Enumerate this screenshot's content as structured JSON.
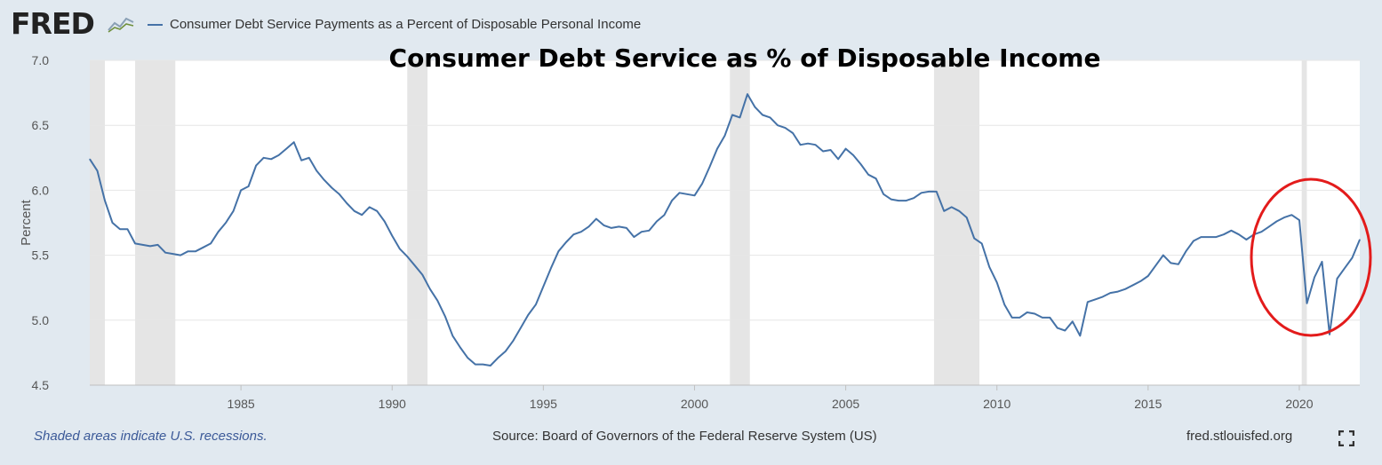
{
  "header": {
    "logo": "FRED",
    "legend_label": "Consumer Debt Service Payments as a Percent of Disposable Personal Income"
  },
  "footer": {
    "note": "Shaded areas indicate U.S. recessions.",
    "source": "Source: Board of Governors of the Federal Reserve System (US)",
    "url": "fred.stlouisfed.org"
  },
  "colors": {
    "line": "#4572a7",
    "recession": "#e5e5e5",
    "annotation": "#e31b1b",
    "background": "#e1e9f0"
  },
  "icons": {
    "logo_chart": "line-chart-icon",
    "fullscreen": "fullscreen-icon"
  },
  "chart_data": {
    "type": "line",
    "title": "Consumer Debt Service as % of Disposable Income",
    "xlabel": "",
    "ylabel": "Percent",
    "xlim": [
      1980.0,
      2022.0
    ],
    "ylim": [
      4.5,
      7.0
    ],
    "grid": true,
    "y_ticks": [
      "4.5",
      "5.0",
      "5.5",
      "6.0",
      "6.5",
      "7.0"
    ],
    "x_ticks": [
      "1985",
      "1990",
      "1995",
      "2000",
      "2005",
      "2010",
      "2015",
      "2020"
    ],
    "recessions": [
      [
        1980.0,
        1980.5
      ],
      [
        1981.5,
        1982.83
      ],
      [
        1990.5,
        1991.17
      ],
      [
        2001.17,
        2001.83
      ],
      [
        2007.92,
        2009.42
      ],
      [
        2020.08,
        2020.25
      ]
    ],
    "annotation": {
      "shape": "ellipse",
      "label": ""
    },
    "series": [
      {
        "name": "Consumer Debt Service Payments as a Percent of Disposable Personal Income",
        "x": [
          1980.0,
          1980.25,
          1980.5,
          1980.75,
          1981.0,
          1981.25,
          1981.5,
          1981.75,
          1982.0,
          1982.25,
          1982.5,
          1982.75,
          1983.0,
          1983.25,
          1983.5,
          1983.75,
          1984.0,
          1984.25,
          1984.5,
          1984.75,
          1985.0,
          1985.25,
          1985.5,
          1985.75,
          1986.0,
          1986.25,
          1986.5,
          1986.75,
          1987.0,
          1987.25,
          1987.5,
          1987.75,
          1988.0,
          1988.25,
          1988.5,
          1988.75,
          1989.0,
          1989.25,
          1989.5,
          1989.75,
          1990.0,
          1990.25,
          1990.5,
          1990.75,
          1991.0,
          1991.25,
          1991.5,
          1991.75,
          1992.0,
          1992.25,
          1992.5,
          1992.75,
          1993.0,
          1993.25,
          1993.5,
          1993.75,
          1994.0,
          1994.25,
          1994.5,
          1994.75,
          1995.0,
          1995.25,
          1995.5,
          1995.75,
          1996.0,
          1996.25,
          1996.5,
          1996.75,
          1997.0,
          1997.25,
          1997.5,
          1997.75,
          1998.0,
          1998.25,
          1998.5,
          1998.75,
          1999.0,
          1999.25,
          1999.5,
          1999.75,
          2000.0,
          2000.25,
          2000.5,
          2000.75,
          2001.0,
          2001.25,
          2001.5,
          2001.75,
          2002.0,
          2002.25,
          2002.5,
          2002.75,
          2003.0,
          2003.25,
          2003.5,
          2003.75,
          2004.0,
          2004.25,
          2004.5,
          2004.75,
          2005.0,
          2005.25,
          2005.5,
          2005.75,
          2006.0,
          2006.25,
          2006.5,
          2006.75,
          2007.0,
          2007.25,
          2007.5,
          2007.75,
          2008.0,
          2008.25,
          2008.5,
          2008.75,
          2009.0,
          2009.25,
          2009.5,
          2009.75,
          2010.0,
          2010.25,
          2010.5,
          2010.75,
          2011.0,
          2011.25,
          2011.5,
          2011.75,
          2012.0,
          2012.25,
          2012.5,
          2012.75,
          2013.0,
          2013.25,
          2013.5,
          2013.75,
          2014.0,
          2014.25,
          2014.5,
          2014.75,
          2015.0,
          2015.25,
          2015.5,
          2015.75,
          2016.0,
          2016.25,
          2016.5,
          2016.75,
          2017.0,
          2017.25,
          2017.5,
          2017.75,
          2018.0,
          2018.25,
          2018.5,
          2018.75,
          2019.0,
          2019.25,
          2019.5,
          2019.75,
          2020.0,
          2020.25,
          2020.5,
          2020.75,
          2021.0,
          2021.25,
          2021.5,
          2021.75,
          2022.0
        ],
        "values": [
          6.24,
          6.15,
          5.92,
          5.75,
          5.7,
          5.7,
          5.59,
          5.58,
          5.57,
          5.58,
          5.52,
          5.51,
          5.5,
          5.53,
          5.53,
          5.56,
          5.59,
          5.68,
          5.75,
          5.84,
          6.0,
          6.03,
          6.19,
          6.25,
          6.24,
          6.27,
          6.32,
          6.37,
          6.23,
          6.25,
          6.15,
          6.08,
          6.02,
          5.97,
          5.9,
          5.84,
          5.81,
          5.87,
          5.84,
          5.76,
          5.65,
          5.55,
          5.49,
          5.42,
          5.35,
          5.24,
          5.15,
          5.03,
          4.88,
          4.79,
          4.71,
          4.66,
          4.66,
          4.65,
          4.71,
          4.76,
          4.84,
          4.94,
          5.04,
          5.12,
          5.26,
          5.4,
          5.53,
          5.6,
          5.66,
          5.68,
          5.72,
          5.78,
          5.73,
          5.71,
          5.72,
          5.71,
          5.64,
          5.68,
          5.69,
          5.76,
          5.81,
          5.92,
          5.98,
          5.97,
          5.96,
          6.05,
          6.18,
          6.32,
          6.42,
          6.58,
          6.56,
          6.74,
          6.64,
          6.58,
          6.56,
          6.5,
          6.48,
          6.44,
          6.35,
          6.36,
          6.35,
          6.3,
          6.31,
          6.24,
          6.32,
          6.27,
          6.2,
          6.12,
          6.09,
          5.97,
          5.93,
          5.92,
          5.92,
          5.94,
          5.98,
          5.99,
          5.99,
          5.84,
          5.87,
          5.84,
          5.79,
          5.63,
          5.59,
          5.41,
          5.29,
          5.12,
          5.02,
          5.02,
          5.06,
          5.05,
          5.02,
          5.02,
          4.94,
          4.92,
          4.99,
          4.88,
          5.14,
          5.16,
          5.18,
          5.21,
          5.22,
          5.24,
          5.27,
          5.3,
          5.34,
          5.42,
          5.5,
          5.44,
          5.43,
          5.53,
          5.61,
          5.64,
          5.64,
          5.64,
          5.66,
          5.69,
          5.66,
          5.62,
          5.66,
          5.68,
          5.72,
          5.76,
          5.79,
          5.81,
          5.77,
          5.13,
          5.33,
          5.45,
          4.89,
          5.32,
          5.4,
          5.48,
          5.62
        ]
      }
    ]
  }
}
